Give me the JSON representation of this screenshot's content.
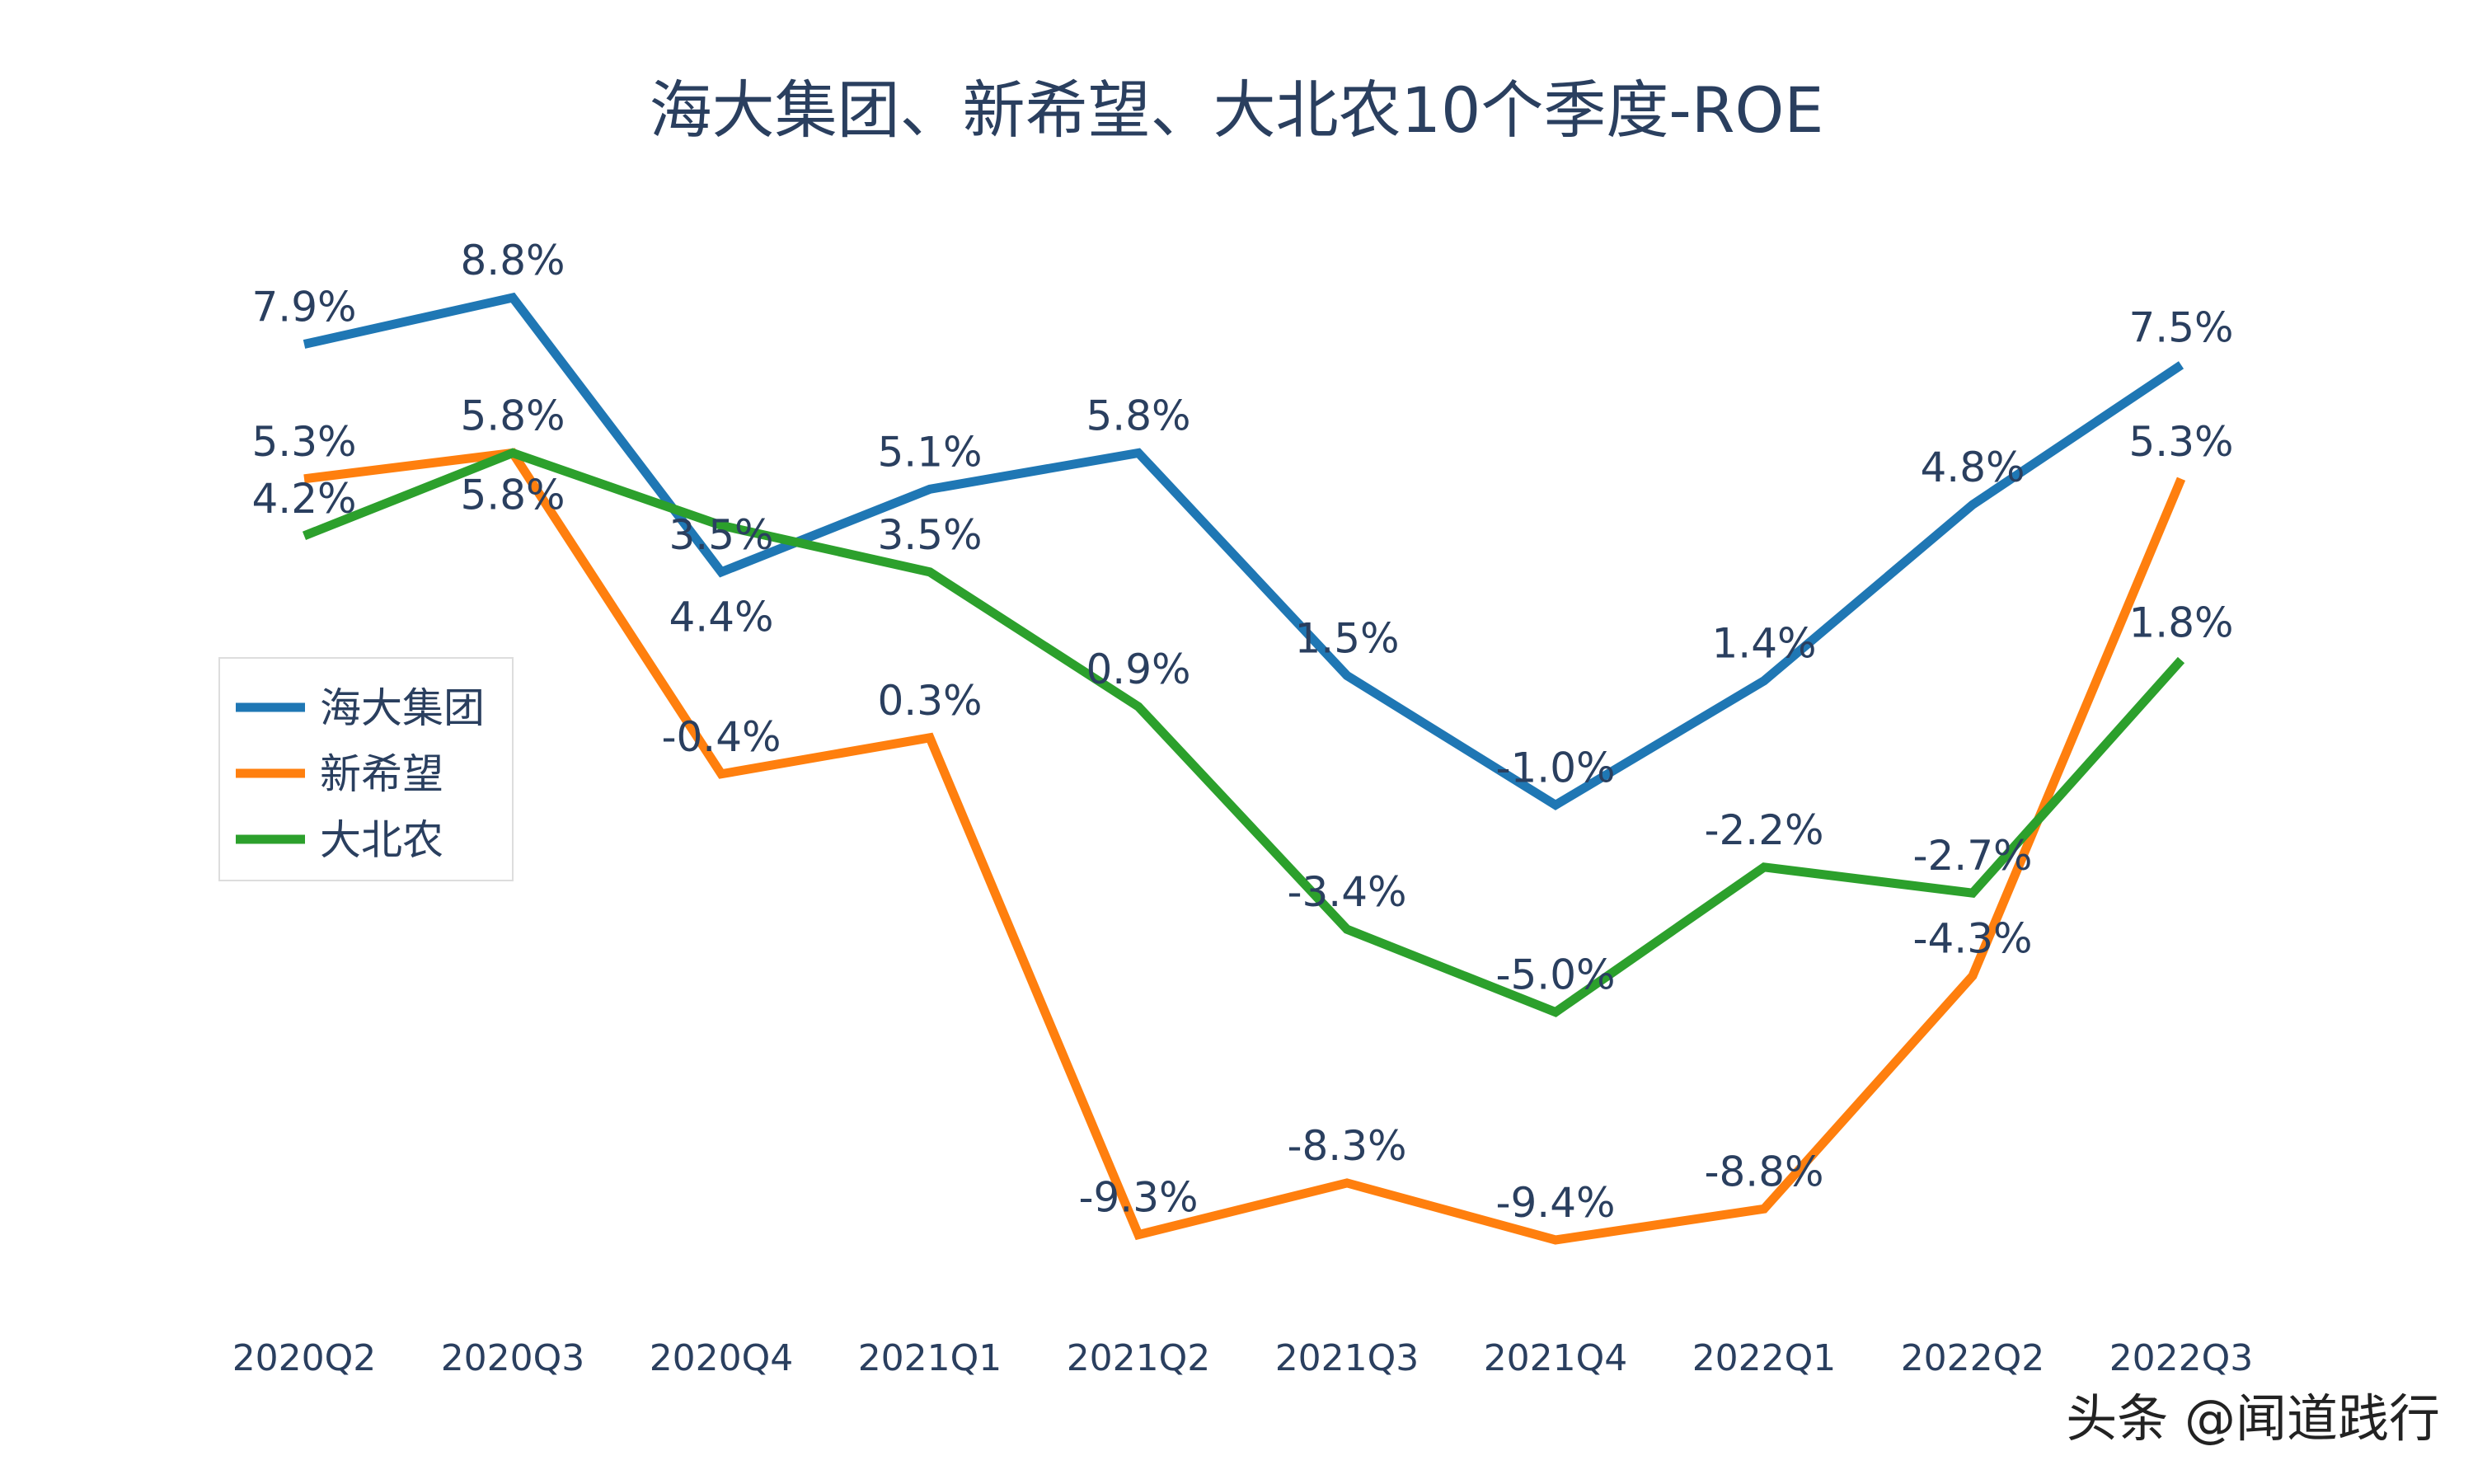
{
  "chart_data": {
    "type": "line",
    "title": "海大集团、新希望、大北农10个季度-ROE",
    "xlabel": "",
    "ylabel": "",
    "categories": [
      "2020Q2",
      "2020Q3",
      "2020Q4",
      "2021Q1",
      "2021Q2",
      "2021Q3",
      "2021Q4",
      "2022Q1",
      "2022Q2",
      "2022Q3"
    ],
    "value_suffix": "%",
    "grid": false,
    "legend_position": "left-middle",
    "series": [
      {
        "name": "海大集团",
        "color": "#1f77b4",
        "values": [
          7.9,
          8.8,
          3.5,
          5.1,
          5.8,
          1.5,
          -1.0,
          1.4,
          4.8,
          7.5
        ]
      },
      {
        "name": "新希望",
        "color": "#ff7f0e",
        "values": [
          5.3,
          5.8,
          -0.4,
          0.3,
          -9.3,
          -8.3,
          -9.4,
          -8.8,
          -4.3,
          5.3
        ]
      },
      {
        "name": "大北农",
        "color": "#2ca02c",
        "values": [
          4.2,
          5.8,
          4.4,
          3.5,
          0.9,
          -3.4,
          -5.0,
          -2.2,
          -2.7,
          1.8
        ]
      }
    ]
  },
  "watermark": "头条 @闻道践行"
}
